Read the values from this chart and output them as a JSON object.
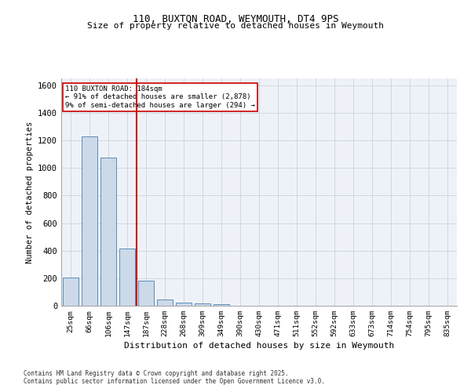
{
  "title_line1": "110, BUXTON ROAD, WEYMOUTH, DT4 9PS",
  "title_line2": "Size of property relative to detached houses in Weymouth",
  "xlabel": "Distribution of detached houses by size in Weymouth",
  "ylabel": "Number of detached properties",
  "categories": [
    "25sqm",
    "66sqm",
    "106sqm",
    "147sqm",
    "187sqm",
    "228sqm",
    "268sqm",
    "309sqm",
    "349sqm",
    "390sqm",
    "430sqm",
    "471sqm",
    "511sqm",
    "552sqm",
    "592sqm",
    "633sqm",
    "673sqm",
    "714sqm",
    "754sqm",
    "795sqm",
    "835sqm"
  ],
  "values": [
    205,
    1230,
    1075,
    415,
    180,
    45,
    25,
    18,
    12,
    0,
    0,
    0,
    0,
    0,
    0,
    0,
    0,
    0,
    0,
    0,
    0
  ],
  "bar_color": "#ccd9e8",
  "bar_edge_color": "#5b8db8",
  "reference_line_color": "#cc0000",
  "annotation_text": "110 BUXTON ROAD: 184sqm\n← 91% of detached houses are smaller (2,878)\n9% of semi-detached houses are larger (294) →",
  "annotation_box_color": "#cc0000",
  "ylim": [
    0,
    1650
  ],
  "yticks": [
    0,
    200,
    400,
    600,
    800,
    1000,
    1200,
    1400,
    1600
  ],
  "grid_color": "#c8d4e0",
  "background_color": "#eef2f8",
  "footnote1": "Contains HM Land Registry data © Crown copyright and database right 2025.",
  "footnote2": "Contains public sector information licensed under the Open Government Licence v3.0."
}
